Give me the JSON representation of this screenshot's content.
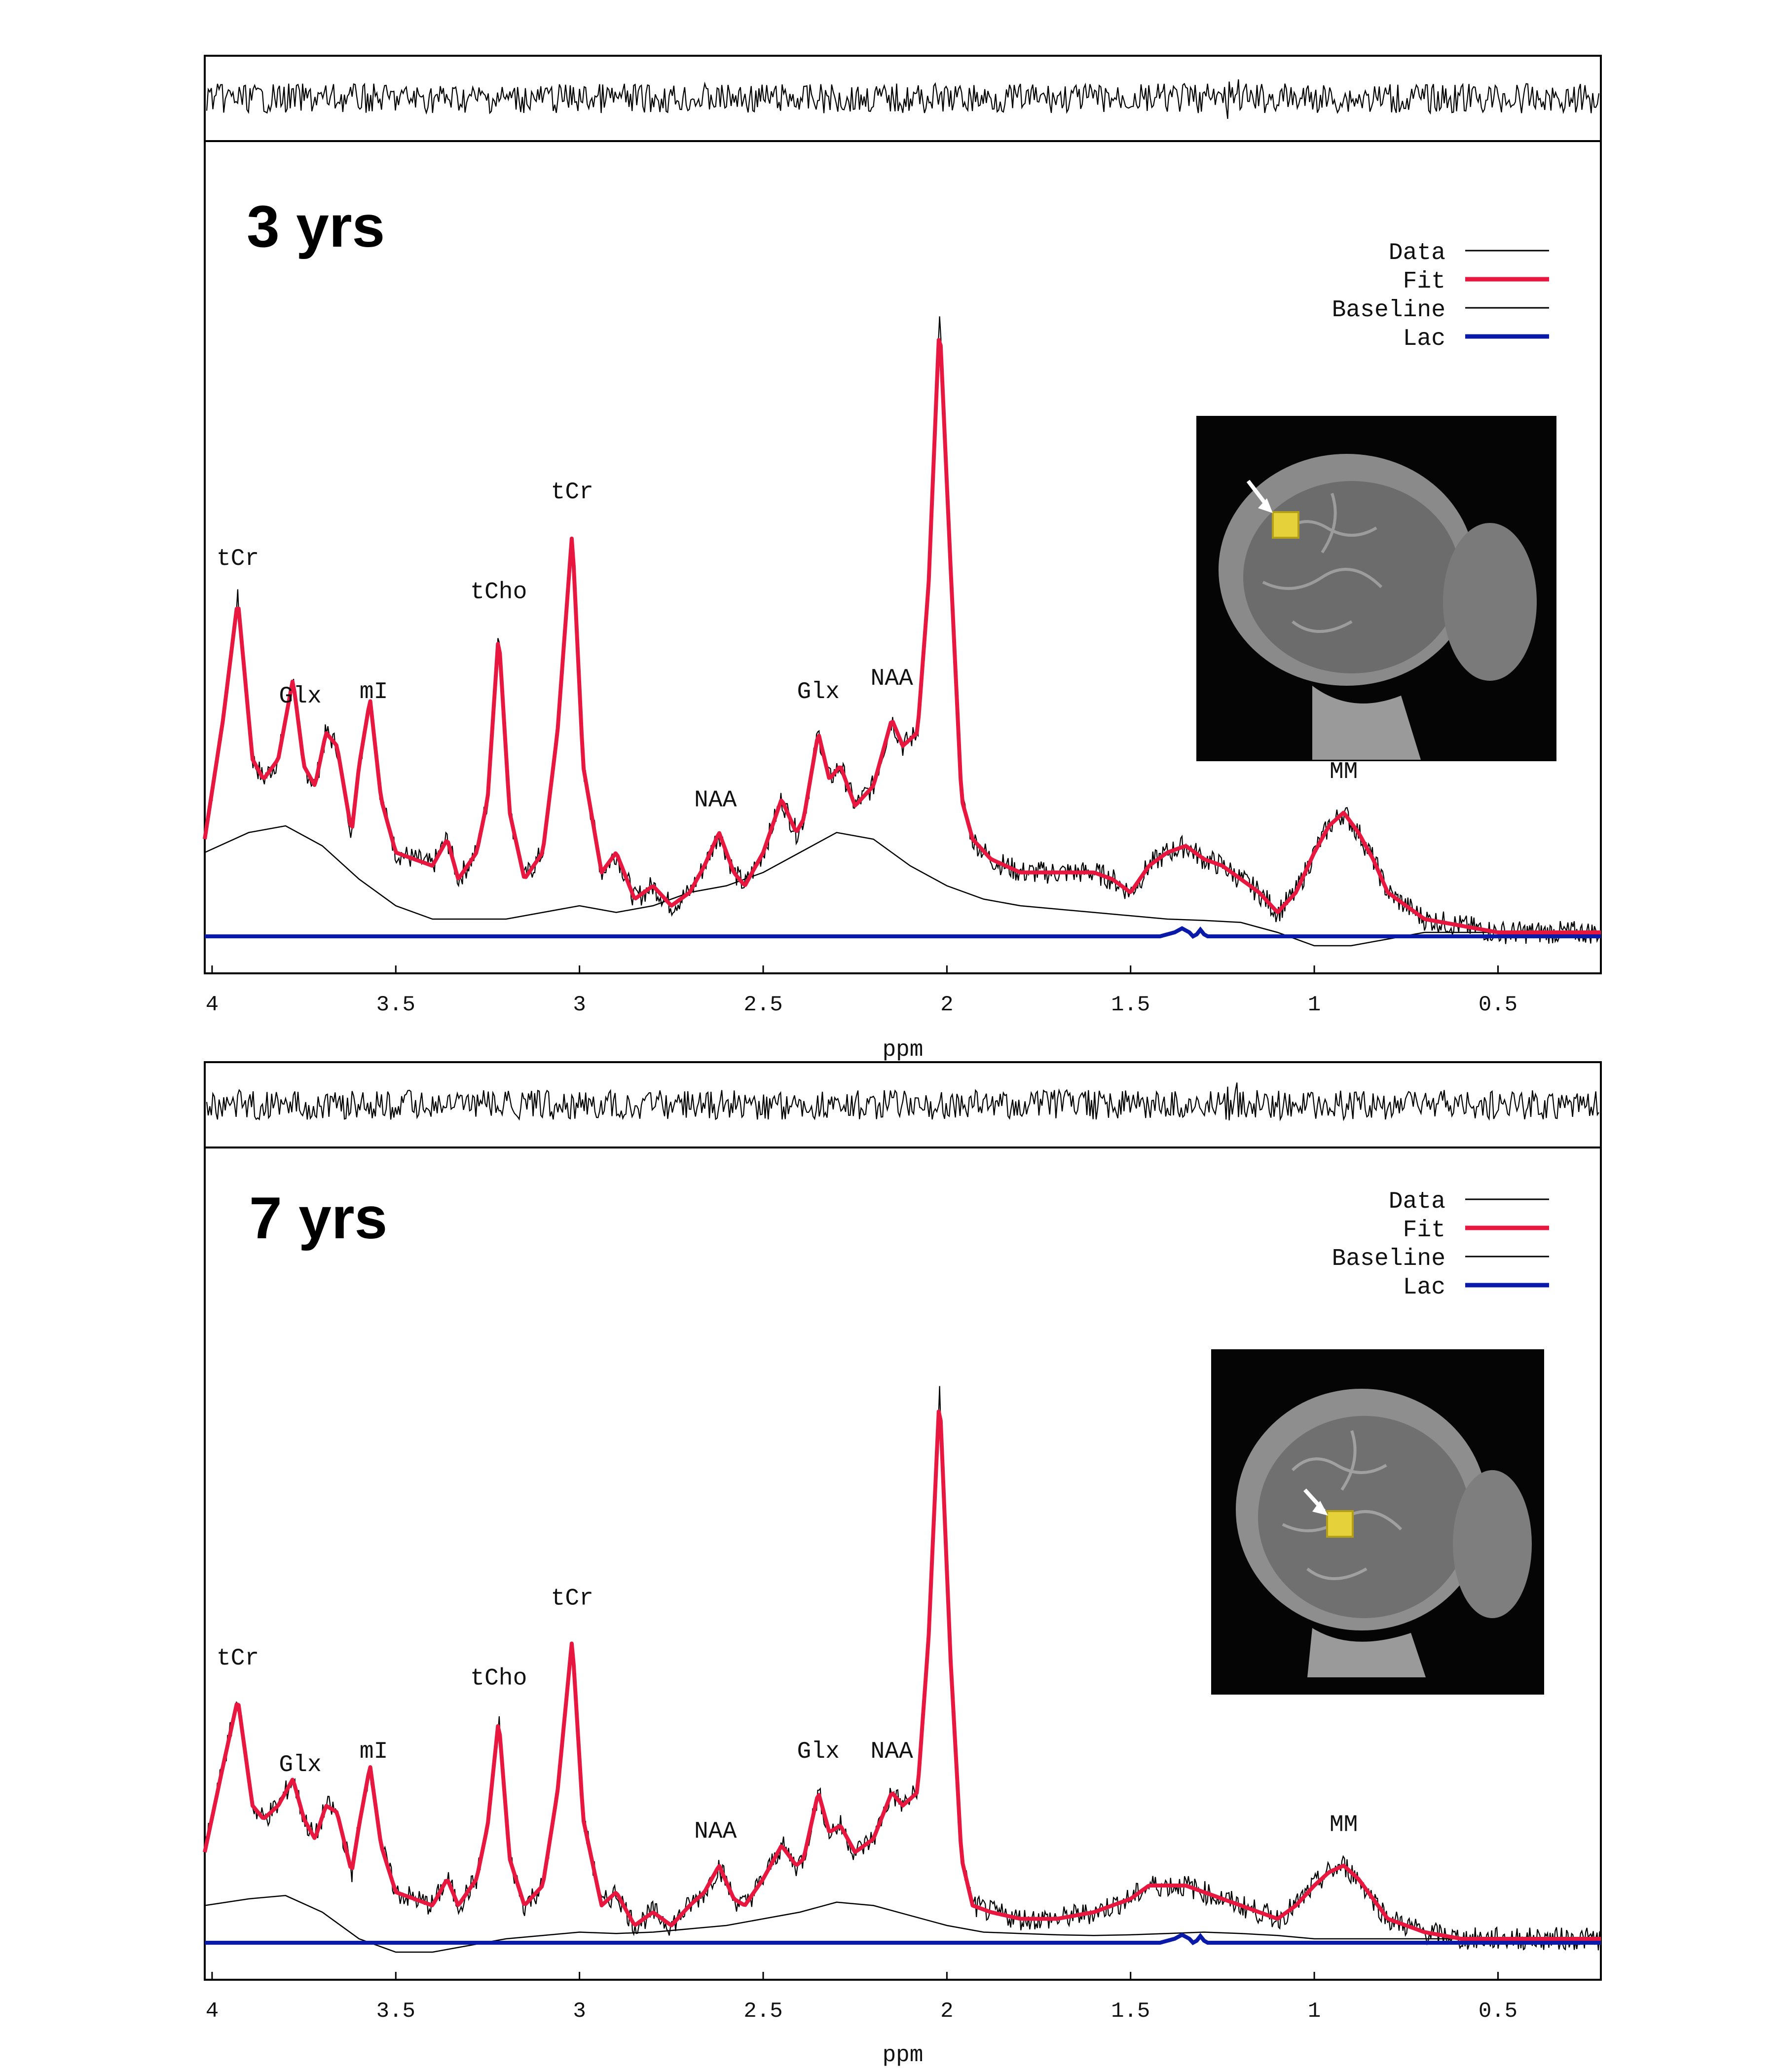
{
  "chart_data": [
    {
      "type": "line",
      "title": "3 yrs",
      "xlabel": "ppm",
      "xlim": [
        4.02,
        0.22
      ],
      "x_reversed": true,
      "xticks": [
        "4",
        "3.5",
        "3",
        "2.5",
        "2",
        "1.5",
        "1",
        "0.5"
      ],
      "xtick_values": [
        4,
        3.5,
        3,
        2.5,
        2,
        1.5,
        1,
        0.5
      ],
      "legend": [
        "Data",
        "Fit",
        "Baseline",
        "Lac"
      ],
      "legend_position": "top-right",
      "colors": {
        "data": "#000000",
        "fit": "#e8173f",
        "baseline": "#000000",
        "lac": "#0a1aa8"
      },
      "peak_labels": [
        {
          "label": "tCr",
          "x": 3.93
        },
        {
          "label": "Glx",
          "x": 3.76
        },
        {
          "label": "mI",
          "x": 3.56
        },
        {
          "label": "tCho",
          "x": 3.22
        },
        {
          "label": "tCr",
          "x": 3.02
        },
        {
          "label": "NAA",
          "x": 2.63
        },
        {
          "label": "Glx",
          "x": 2.35
        },
        {
          "label": "NAA",
          "x": 2.15
        },
        {
          "label": "MM",
          "x": 0.92
        }
      ],
      "series": [
        {
          "name": "Fit",
          "x": [
            4.02,
            3.97,
            3.93,
            3.89,
            3.86,
            3.82,
            3.78,
            3.75,
            3.72,
            3.69,
            3.66,
            3.62,
            3.6,
            3.57,
            3.54,
            3.5,
            3.45,
            3.4,
            3.36,
            3.33,
            3.28,
            3.25,
            3.22,
            3.19,
            3.15,
            3.1,
            3.06,
            3.02,
            2.99,
            2.94,
            2.9,
            2.85,
            2.8,
            2.75,
            2.7,
            2.66,
            2.62,
            2.58,
            2.55,
            2.5,
            2.45,
            2.41,
            2.39,
            2.35,
            2.32,
            2.29,
            2.25,
            2.2,
            2.15,
            2.12,
            2.08,
            2.05,
            2.02,
            1.99,
            1.96,
            1.93,
            1.88,
            1.8,
            1.7,
            1.6,
            1.55,
            1.5,
            1.45,
            1.4,
            1.35,
            1.3,
            1.25,
            1.2,
            1.15,
            1.1,
            1.05,
            1.0,
            0.96,
            0.92,
            0.88,
            0.84,
            0.8,
            0.75,
            0.7,
            0.6,
            0.5,
            0.4,
            0.3,
            0.22
          ],
          "y": [
            0.14,
            0.32,
            0.5,
            0.26,
            0.23,
            0.26,
            0.38,
            0.25,
            0.22,
            0.3,
            0.28,
            0.15,
            0.25,
            0.35,
            0.2,
            0.12,
            0.11,
            0.1,
            0.14,
            0.08,
            0.12,
            0.2,
            0.45,
            0.18,
            0.08,
            0.12,
            0.3,
            0.6,
            0.25,
            0.09,
            0.12,
            0.05,
            0.07,
            0.04,
            0.06,
            0.1,
            0.15,
            0.09,
            0.07,
            0.12,
            0.2,
            0.15,
            0.17,
            0.3,
            0.23,
            0.25,
            0.19,
            0.22,
            0.32,
            0.28,
            0.3,
            0.52,
            0.92,
            0.55,
            0.2,
            0.14,
            0.11,
            0.09,
            0.09,
            0.09,
            0.08,
            0.06,
            0.1,
            0.12,
            0.13,
            0.11,
            0.1,
            0.08,
            0.06,
            0.03,
            0.06,
            0.12,
            0.16,
            0.18,
            0.15,
            0.11,
            0.06,
            0.04,
            0.02,
            0.01,
            0.0,
            0.0,
            0.0,
            0.0
          ]
        },
        {
          "name": "Baseline",
          "x": [
            4.02,
            3.9,
            3.8,
            3.7,
            3.6,
            3.5,
            3.4,
            3.3,
            3.2,
            3.1,
            3.0,
            2.9,
            2.8,
            2.7,
            2.6,
            2.5,
            2.4,
            2.3,
            2.2,
            2.1,
            2.0,
            1.9,
            1.8,
            1.7,
            1.6,
            1.5,
            1.4,
            1.3,
            1.2,
            1.1,
            1.0,
            0.9,
            0.8,
            0.7,
            0.6,
            0.5,
            0.4,
            0.3,
            0.22
          ],
          "y": [
            0.12,
            0.15,
            0.16,
            0.13,
            0.08,
            0.04,
            0.02,
            0.02,
            0.02,
            0.03,
            0.04,
            0.03,
            0.04,
            0.06,
            0.07,
            0.09,
            0.12,
            0.15,
            0.14,
            0.1,
            0.07,
            0.05,
            0.04,
            0.035,
            0.03,
            0.025,
            0.02,
            0.018,
            0.015,
            0.0,
            -0.02,
            -0.02,
            -0.01,
            0.0,
            0.0,
            0.0,
            0.0,
            0.0,
            0.0
          ]
        },
        {
          "name": "Lac",
          "x": [
            4.02,
            1.42,
            1.38,
            1.36,
            1.34,
            1.33,
            1.32,
            1.31,
            1.3,
            1.29,
            1.27,
            1.22,
            0.22
          ],
          "y": [
            0.0,
            0.0,
            0.006,
            0.012,
            0.006,
            0.0,
            0.003,
            0.01,
            0.003,
            0.0,
            0.0,
            0.0,
            0.0
          ]
        }
      ]
    },
    {
      "type": "line",
      "title": "7 yrs",
      "xlabel": "ppm",
      "xlim": [
        4.02,
        0.22
      ],
      "x_reversed": true,
      "xticks": [
        "4",
        "3.5",
        "3",
        "2.5",
        "2",
        "1.5",
        "1",
        "0.5"
      ],
      "xtick_values": [
        4,
        3.5,
        3,
        2.5,
        2,
        1.5,
        1,
        0.5
      ],
      "legend": [
        "Data",
        "Fit",
        "Baseline",
        "Lac"
      ],
      "legend_position": "top-right",
      "colors": {
        "data": "#000000",
        "fit": "#e8173f",
        "baseline": "#000000",
        "lac": "#0a1aa8"
      },
      "peak_labels": [
        {
          "label": "tCr",
          "x": 3.93
        },
        {
          "label": "Glx",
          "x": 3.76
        },
        {
          "label": "mI",
          "x": 3.56
        },
        {
          "label": "tCho",
          "x": 3.22
        },
        {
          "label": "tCr",
          "x": 3.02
        },
        {
          "label": "NAA",
          "x": 2.63
        },
        {
          "label": "Glx",
          "x": 2.35
        },
        {
          "label": "NAA",
          "x": 2.15
        },
        {
          "label": "MM",
          "x": 0.92
        }
      ],
      "series": [
        {
          "name": "Fit",
          "x": [
            4.02,
            3.97,
            3.93,
            3.89,
            3.86,
            3.82,
            3.78,
            3.75,
            3.72,
            3.69,
            3.66,
            3.62,
            3.6,
            3.57,
            3.54,
            3.5,
            3.45,
            3.4,
            3.36,
            3.33,
            3.28,
            3.25,
            3.22,
            3.19,
            3.15,
            3.1,
            3.06,
            3.02,
            2.99,
            2.94,
            2.9,
            2.85,
            2.8,
            2.75,
            2.7,
            2.66,
            2.62,
            2.58,
            2.55,
            2.5,
            2.45,
            2.41,
            2.39,
            2.35,
            2.32,
            2.29,
            2.25,
            2.2,
            2.15,
            2.12,
            2.08,
            2.05,
            2.02,
            1.99,
            1.96,
            1.93,
            1.88,
            1.8,
            1.7,
            1.6,
            1.55,
            1.5,
            1.45,
            1.4,
            1.35,
            1.3,
            1.25,
            1.2,
            1.15,
            1.1,
            1.05,
            1.0,
            0.96,
            0.92,
            0.88,
            0.84,
            0.8,
            0.75,
            0.7,
            0.6,
            0.5,
            0.4,
            0.3,
            0.22
          ],
          "y": [
            0.13,
            0.26,
            0.36,
            0.2,
            0.18,
            0.2,
            0.24,
            0.18,
            0.15,
            0.2,
            0.19,
            0.1,
            0.17,
            0.26,
            0.14,
            0.07,
            0.06,
            0.05,
            0.09,
            0.05,
            0.09,
            0.17,
            0.33,
            0.12,
            0.05,
            0.08,
            0.22,
            0.45,
            0.18,
            0.05,
            0.07,
            0.02,
            0.04,
            0.02,
            0.05,
            0.07,
            0.11,
            0.06,
            0.05,
            0.09,
            0.14,
            0.11,
            0.12,
            0.22,
            0.16,
            0.17,
            0.13,
            0.15,
            0.22,
            0.2,
            0.22,
            0.45,
            0.82,
            0.42,
            0.12,
            0.05,
            0.04,
            0.03,
            0.03,
            0.04,
            0.05,
            0.06,
            0.08,
            0.08,
            0.08,
            0.07,
            0.06,
            0.05,
            0.04,
            0.03,
            0.05,
            0.08,
            0.1,
            0.11,
            0.09,
            0.06,
            0.03,
            0.02,
            0.01,
            0.0,
            0.0,
            0.0,
            0.0,
            0.0
          ]
        },
        {
          "name": "Baseline",
          "x": [
            4.02,
            3.9,
            3.8,
            3.7,
            3.6,
            3.5,
            3.4,
            3.3,
            3.2,
            3.1,
            3.0,
            2.9,
            2.8,
            2.7,
            2.6,
            2.5,
            2.4,
            2.3,
            2.2,
            2.1,
            2.0,
            1.9,
            1.8,
            1.7,
            1.6,
            1.5,
            1.4,
            1.3,
            1.2,
            1.1,
            1.0,
            0.9,
            0.8,
            0.7,
            0.6,
            0.5,
            0.4,
            0.3,
            0.22
          ],
          "y": [
            0.05,
            0.06,
            0.065,
            0.04,
            0.0,
            -0.02,
            -0.02,
            -0.01,
            0.0,
            0.005,
            0.01,
            0.008,
            0.01,
            0.015,
            0.02,
            0.03,
            0.04,
            0.055,
            0.05,
            0.035,
            0.02,
            0.01,
            0.008,
            0.006,
            0.005,
            0.006,
            0.008,
            0.01,
            0.008,
            0.005,
            0.0,
            0.0,
            0.0,
            0.0,
            0.0,
            0.0,
            0.0,
            0.0,
            0.0
          ]
        },
        {
          "name": "Lac",
          "x": [
            4.02,
            1.42,
            1.38,
            1.36,
            1.34,
            1.33,
            1.32,
            1.31,
            1.3,
            1.29,
            1.27,
            1.22,
            0.22
          ],
          "y": [
            0.0,
            0.0,
            0.006,
            0.012,
            0.006,
            0.0,
            0.003,
            0.01,
            0.003,
            0.0,
            0.0,
            0.0,
            0.0
          ]
        }
      ]
    }
  ]
}
